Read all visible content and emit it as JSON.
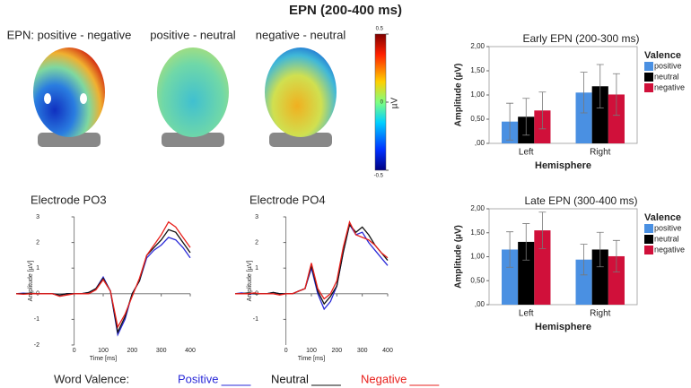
{
  "title": "EPN (200-400 ms)",
  "chart_data": [
    {
      "type": "topomap",
      "maps": [
        "EPN: positive - negative",
        "positive - neutral",
        "negative - neutral"
      ],
      "colorbar_label": "µV",
      "clim": [
        -0.5,
        0.5
      ],
      "cticks": [
        0.5,
        0,
        -0.5
      ]
    },
    {
      "type": "line",
      "title": "Electrode PO3",
      "xlabel": "Time [ms]",
      "ylabel": "Amplitude [µV]",
      "legend_title": "Word Valence:",
      "x": [
        -200,
        -175,
        -150,
        -125,
        -100,
        -75,
        -50,
        -25,
        0,
        25,
        50,
        75,
        100,
        125,
        150,
        175,
        200,
        225,
        250,
        275,
        300,
        325,
        350,
        375,
        400
      ],
      "xlim": [
        -200,
        400
      ],
      "xticks": [
        0,
        100,
        200,
        300,
        400
      ],
      "ylim": [
        -2,
        3
      ],
      "yticks": [
        -2,
        -1,
        0,
        1,
        2,
        3
      ],
      "series": [
        {
          "name": "Positive",
          "color": "#2a2ad8",
          "values": [
            0,
            0.02,
            0,
            0,
            0,
            0,
            -0.05,
            0,
            0,
            0,
            0.05,
            0.2,
            0.65,
            0.1,
            -1.6,
            -1.0,
            0.0,
            0.5,
            1.4,
            1.7,
            1.9,
            2.2,
            2.1,
            1.8,
            1.4
          ]
        },
        {
          "name": "Neutral",
          "color": "#111111",
          "values": [
            0,
            0,
            0.02,
            0,
            0,
            0,
            -0.05,
            0,
            0,
            0,
            0.05,
            0.2,
            0.6,
            0.1,
            -1.5,
            -0.9,
            0.0,
            0.5,
            1.5,
            1.8,
            2.1,
            2.5,
            2.4,
            2.0,
            1.6
          ]
        },
        {
          "name": "Negative",
          "color": "#e8201c",
          "values": [
            0,
            -0.02,
            0,
            0,
            0,
            0,
            -0.1,
            -0.05,
            0,
            0,
            0,
            0.15,
            0.55,
            0.1,
            -1.3,
            -0.8,
            -0.1,
            0.6,
            1.5,
            1.9,
            2.3,
            2.8,
            2.6,
            2.2,
            1.8
          ]
        }
      ]
    },
    {
      "type": "line",
      "title": "Electrode PO4",
      "xlabel": "Time [ms]",
      "ylabel": "Amplitude [µV]",
      "x": [
        -200,
        -175,
        -150,
        -125,
        -100,
        -75,
        -50,
        -25,
        0,
        25,
        50,
        75,
        100,
        125,
        150,
        175,
        200,
        225,
        250,
        275,
        300,
        325,
        350,
        375,
        400
      ],
      "xlim": [
        -200,
        400
      ],
      "xticks": [
        0,
        100,
        200,
        300,
        400
      ],
      "ylim": [
        -2,
        3
      ],
      "yticks": [
        -1,
        0,
        1,
        2,
        3
      ],
      "series": [
        {
          "color": "#2a2ad8",
          "values": [
            0,
            0.03,
            0,
            0,
            0,
            0,
            0.05,
            0,
            0,
            0,
            0.1,
            0.2,
            1.0,
            0.0,
            -0.6,
            -0.3,
            0.3,
            1.6,
            2.7,
            2.3,
            2.4,
            2.0,
            1.7,
            1.4,
            1.1
          ]
        },
        {
          "color": "#111111",
          "values": [
            0,
            0,
            0.03,
            0,
            0,
            0,
            0.05,
            0,
            0,
            0,
            0.1,
            0.2,
            1.1,
            0.1,
            -0.4,
            -0.1,
            0.3,
            1.6,
            2.7,
            2.4,
            2.6,
            2.3,
            1.9,
            1.6,
            1.3
          ]
        },
        {
          "color": "#e8201c",
          "values": [
            0,
            0,
            0,
            0.03,
            0,
            0,
            0,
            -0.05,
            0,
            0,
            0.1,
            0.2,
            1.2,
            0.2,
            -0.2,
            0.0,
            0.5,
            1.8,
            2.8,
            2.3,
            2.2,
            2.1,
            1.9,
            1.6,
            1.4
          ]
        }
      ]
    },
    {
      "type": "bar",
      "title": "Early EPN (200-300 ms)",
      "xlabel": "Hemisphere",
      "ylabel": "Amplitude (µV)",
      "legend_title": "Valence",
      "categories": [
        "Left",
        "Right"
      ],
      "ylim": [
        0,
        2
      ],
      "yticks": [
        {
          "value": 0,
          "label": ",00"
        },
        {
          "value": 0.5,
          "label": "0,50"
        },
        {
          "value": 1,
          "label": "1,00"
        },
        {
          "value": 1.5,
          "label": "1,50"
        },
        {
          "value": 2,
          "label": "2,00"
        }
      ],
      "series": [
        {
          "name": "positive",
          "color": "#4a90e2",
          "values": [
            0.45,
            1.05
          ],
          "errors": [
            0.38,
            0.42
          ]
        },
        {
          "name": "neutral",
          "color": "#000000",
          "values": [
            0.55,
            1.18
          ],
          "errors": [
            0.38,
            0.45
          ]
        },
        {
          "name": "negative",
          "color": "#d0103a",
          "values": [
            0.68,
            1.01
          ],
          "errors": [
            0.38,
            0.43
          ]
        }
      ]
    },
    {
      "type": "bar",
      "title": "Late EPN (300-400 ms)",
      "xlabel": "Hemisphere",
      "ylabel": "Amplitude (µV)",
      "legend_title": "Valence",
      "categories": [
        "Left",
        "Right"
      ],
      "ylim": [
        0,
        2
      ],
      "yticks": [
        {
          "value": 0,
          "label": ",00"
        },
        {
          "value": 0.5,
          "label": "0,50"
        },
        {
          "value": 1,
          "label": "1,00"
        },
        {
          "value": 1.5,
          "label": "1,50"
        },
        {
          "value": 2,
          "label": "2,00"
        }
      ],
      "series": [
        {
          "name": "positive",
          "color": "#4a90e2",
          "values": [
            1.15,
            0.94
          ],
          "errors": [
            0.37,
            0.32
          ]
        },
        {
          "name": "neutral",
          "color": "#000000",
          "values": [
            1.31,
            1.15
          ],
          "errors": [
            0.38,
            0.36
          ]
        },
        {
          "name": "negative",
          "color": "#d0103a",
          "values": [
            1.55,
            1.01
          ],
          "errors": [
            0.38,
            0.33
          ]
        }
      ]
    }
  ]
}
